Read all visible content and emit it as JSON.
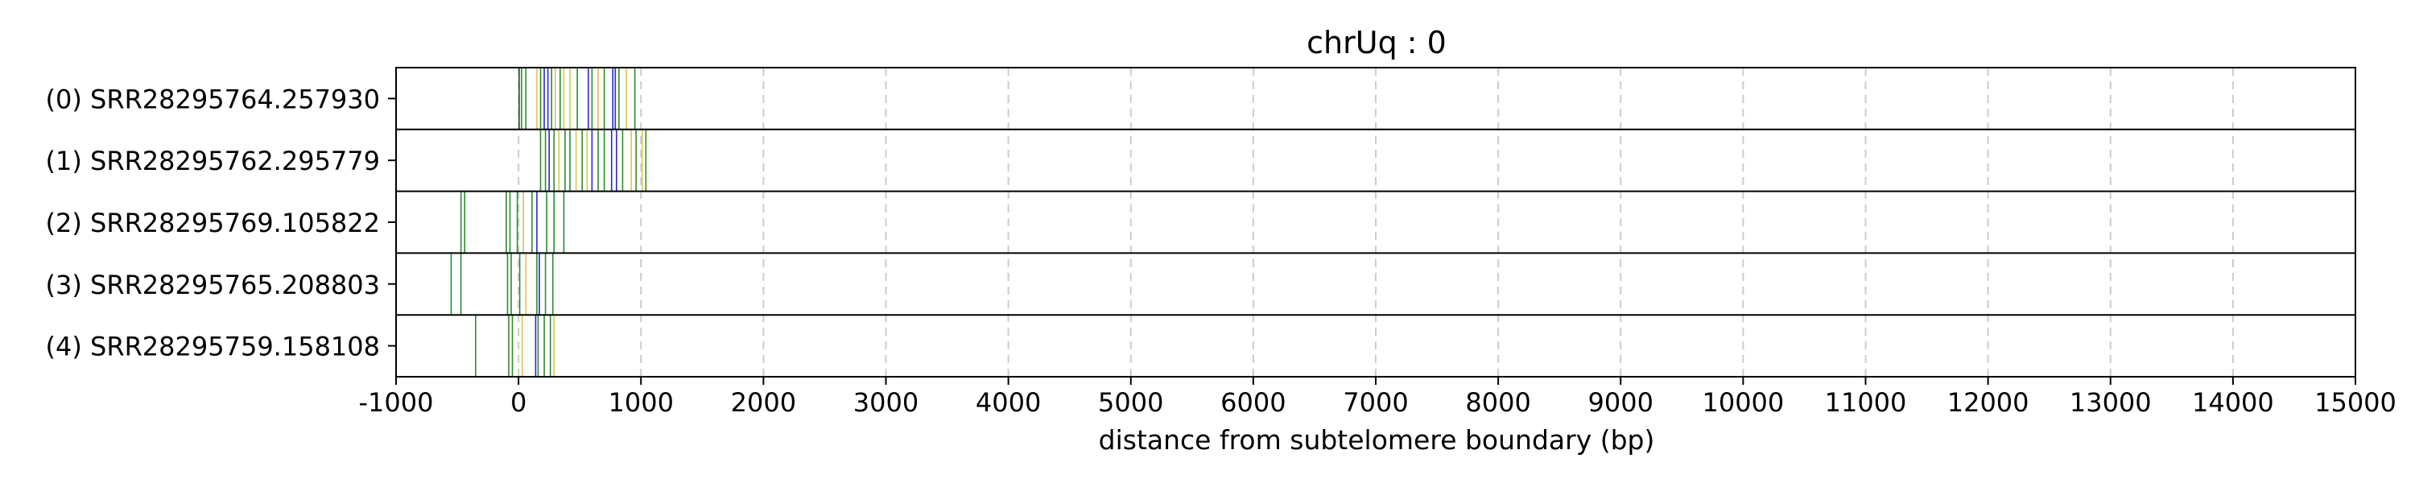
{
  "chart_data": {
    "type": "line",
    "title": "chrUq : 0",
    "xlabel": "distance from subtelomere boundary (bp)",
    "ylabel": "",
    "xlim": [
      -1000,
      15000
    ],
    "xticks": [
      -1000,
      0,
      1000,
      2000,
      3000,
      4000,
      5000,
      6000,
      7000,
      8000,
      9000,
      10000,
      11000,
      12000,
      13000,
      14000,
      15000
    ],
    "xtick_labels": [
      "-1000",
      "0",
      "1000",
      "2000",
      "3000",
      "4000",
      "5000",
      "6000",
      "7000",
      "8000",
      "9000",
      "10000",
      "11000",
      "12000",
      "13000",
      "14000",
      "15000"
    ],
    "grid": "vertical dashed",
    "colors": {
      "green": "#2e8b2e",
      "blue": "#2a2ad0",
      "yellow": "#d9c84a",
      "dark_green": "#0b5a0b",
      "grid": "#cccccc",
      "frame": "#000000"
    },
    "rows": [
      {
        "label": "(0) SRR28295764.257930",
        "marks": [
          {
            "x": 5,
            "color": "dark_green"
          },
          {
            "x": 25,
            "color": "green"
          },
          {
            "x": 60,
            "color": "green"
          },
          {
            "x": 150,
            "color": "yellow"
          },
          {
            "x": 180,
            "color": "green"
          },
          {
            "x": 210,
            "color": "blue"
          },
          {
            "x": 240,
            "color": "blue"
          },
          {
            "x": 270,
            "color": "green"
          },
          {
            "x": 300,
            "color": "yellow"
          },
          {
            "x": 340,
            "color": "green"
          },
          {
            "x": 370,
            "color": "yellow"
          },
          {
            "x": 420,
            "color": "yellow"
          },
          {
            "x": 480,
            "color": "green"
          },
          {
            "x": 570,
            "color": "blue"
          },
          {
            "x": 600,
            "color": "green"
          },
          {
            "x": 650,
            "color": "yellow"
          },
          {
            "x": 700,
            "color": "green"
          },
          {
            "x": 770,
            "color": "blue"
          },
          {
            "x": 790,
            "color": "blue"
          },
          {
            "x": 820,
            "color": "green"
          },
          {
            "x": 880,
            "color": "yellow"
          },
          {
            "x": 950,
            "color": "green"
          }
        ]
      },
      {
        "label": "(1) SRR28295762.295779",
        "marks": [
          {
            "x": 180,
            "color": "green"
          },
          {
            "x": 220,
            "color": "green"
          },
          {
            "x": 250,
            "color": "blue"
          },
          {
            "x": 290,
            "color": "green"
          },
          {
            "x": 330,
            "color": "yellow"
          },
          {
            "x": 380,
            "color": "green"
          },
          {
            "x": 420,
            "color": "green"
          },
          {
            "x": 470,
            "color": "yellow"
          },
          {
            "x": 520,
            "color": "green"
          },
          {
            "x": 560,
            "color": "yellow"
          },
          {
            "x": 600,
            "color": "blue"
          },
          {
            "x": 650,
            "color": "green"
          },
          {
            "x": 700,
            "color": "green"
          },
          {
            "x": 760,
            "color": "blue"
          },
          {
            "x": 800,
            "color": "blue"
          },
          {
            "x": 850,
            "color": "green"
          },
          {
            "x": 920,
            "color": "yellow"
          },
          {
            "x": 960,
            "color": "green"
          },
          {
            "x": 1010,
            "color": "yellow"
          },
          {
            "x": 1040,
            "color": "green"
          }
        ]
      },
      {
        "label": "(2) SRR28295769.105822",
        "marks": [
          {
            "x": -470,
            "color": "green"
          },
          {
            "x": -440,
            "color": "green"
          },
          {
            "x": -100,
            "color": "green"
          },
          {
            "x": -70,
            "color": "green"
          },
          {
            "x": -10,
            "color": "green"
          },
          {
            "x": 40,
            "color": "yellow"
          },
          {
            "x": 110,
            "color": "green"
          },
          {
            "x": 150,
            "color": "blue"
          },
          {
            "x": 230,
            "color": "green"
          },
          {
            "x": 290,
            "color": "green"
          },
          {
            "x": 370,
            "color": "green"
          }
        ]
      },
      {
        "label": "(3) SRR28295765.208803",
        "marks": [
          {
            "x": -550,
            "color": "green"
          },
          {
            "x": -470,
            "color": "green"
          },
          {
            "x": -90,
            "color": "green"
          },
          {
            "x": -60,
            "color": "green"
          },
          {
            "x": 10,
            "color": "green"
          },
          {
            "x": 60,
            "color": "yellow"
          },
          {
            "x": 150,
            "color": "green"
          },
          {
            "x": 170,
            "color": "blue"
          },
          {
            "x": 220,
            "color": "green"
          },
          {
            "x": 280,
            "color": "green"
          }
        ]
      },
      {
        "label": "(4) SRR28295759.158108",
        "marks": [
          {
            "x": -350,
            "color": "green"
          },
          {
            "x": -80,
            "color": "green"
          },
          {
            "x": -50,
            "color": "green"
          },
          {
            "x": 30,
            "color": "yellow"
          },
          {
            "x": 140,
            "color": "blue"
          },
          {
            "x": 160,
            "color": "green"
          },
          {
            "x": 210,
            "color": "green"
          },
          {
            "x": 260,
            "color": "green"
          },
          {
            "x": 290,
            "color": "yellow"
          }
        ]
      }
    ]
  }
}
